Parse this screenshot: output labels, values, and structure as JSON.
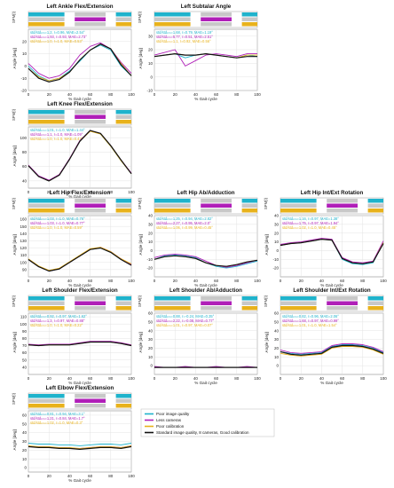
{
  "colors": {
    "cyan": "#1fb3cc",
    "magenta": "#b01fb8",
    "orange": "#e8b21c",
    "black": "#111111",
    "spm_gray": "#c8c8c8",
    "grid": "#dcdcdc"
  },
  "common": {
    "y_label_spm": "SPM{t}",
    "y_label_angle": "Angle [deg]",
    "x_label": "% Gait cycle",
    "x_ticks": [
      0,
      20,
      40,
      60,
      80,
      100
    ]
  },
  "legend": [
    {
      "label": "Poor image quality",
      "color": "#1fb3cc"
    },
    {
      "label": "Less cameras",
      "color": "#b01fb8"
    },
    {
      "label": "Poor calibration",
      "color": "#e8b21c"
    },
    {
      "label": "Standard image quality, 8 cameras, Good calibration",
      "color": "#111111"
    }
  ],
  "chart_data": [
    {
      "id": "ankle",
      "type": "line",
      "title": "Left Ankle Flex/Extension",
      "ylim": [
        -20,
        30
      ],
      "yticks": [
        -20,
        -10,
        0,
        10,
        20
      ],
      "stats": [
        "std/stdₛₜₙ=1.2, r=0.96, MAE=2.54°",
        "std/stdₛₜₙ=1.93, r=0.93, MAE=2.73°",
        "std/stdₛₜₙ=1.0, r=1.0, MAE=0.53°"
      ],
      "x": [
        0,
        10,
        20,
        30,
        40,
        50,
        60,
        70,
        80,
        90,
        100
      ],
      "series": [
        {
          "name": "Poor image quality",
          "values": [
            0,
            -8,
            -12,
            -10,
            -4,
            4,
            13,
            17,
            13,
            0,
            -8
          ]
        },
        {
          "name": "Less cameras",
          "values": [
            2,
            -6,
            -10,
            -8,
            -2,
            9,
            16,
            19,
            14,
            3,
            -6
          ]
        },
        {
          "name": "Poor calibration",
          "values": [
            -2,
            -9,
            -12,
            -10,
            -5,
            5,
            13,
            18,
            14,
            2,
            -8
          ]
        },
        {
          "name": "Standard image quality, 8 cameras, Good calibration",
          "values": [
            -2,
            -10,
            -13,
            -11,
            -5,
            5,
            13,
            18,
            14,
            1,
            -8
          ]
        }
      ]
    },
    {
      "id": "subtalar",
      "type": "line",
      "title": "Left Subtalar Angle",
      "ylim": [
        -10,
        35
      ],
      "yticks": [
        -10,
        0,
        10,
        20,
        30
      ],
      "stats": [
        "std/stdₛₜₙ=1.68, r=0.79, MAE=1.19°",
        "std/stdₛₜₙ=5.77, r=0.51, MAE=2.51°",
        "std/stdₛₜₙ=1.1, r=0.92, MAE=0.56°"
      ],
      "x": [
        0,
        10,
        20,
        30,
        40,
        50,
        60,
        70,
        80,
        90,
        100
      ],
      "series": [
        {
          "name": "Poor image quality",
          "values": [
            15,
            16,
            17,
            14,
            16,
            17,
            16,
            15,
            14,
            16,
            15
          ]
        },
        {
          "name": "Less cameras",
          "values": [
            16,
            18,
            20,
            8,
            12,
            16,
            17,
            16,
            15,
            17,
            17
          ]
        },
        {
          "name": "Poor calibration",
          "values": [
            15,
            16,
            17,
            16,
            16,
            17,
            16,
            15,
            14,
            16,
            16
          ]
        },
        {
          "name": "Standard image quality, 8 cameras, Good calibration",
          "values": [
            15,
            16,
            17,
            16,
            16,
            17,
            16,
            15,
            14,
            15,
            15
          ]
        }
      ]
    },
    {
      "id": "knee",
      "type": "line",
      "title": "Left Knee Flex/Extension",
      "ylim": [
        30,
        115
      ],
      "yticks": [
        40,
        60,
        80,
        100
      ],
      "stats": [
        "std/stdₛₜₙ=1.01, r=1.0, MAE=1.44°",
        "std/stdₛₜₙ=1.1, r=1.0, MAE=1.09°",
        "std/stdₛₜₙ=1.0, r=1.0, MAE=0.43°"
      ],
      "x": [
        0,
        10,
        20,
        30,
        40,
        50,
        60,
        70,
        80,
        90,
        100
      ],
      "series": [
        {
          "name": "Poor image quality",
          "values": [
            61,
            46,
            40,
            48,
            70,
            95,
            110,
            105,
            88,
            68,
            50
          ]
        },
        {
          "name": "Less cameras",
          "values": [
            62,
            47,
            41,
            49,
            71,
            96,
            110,
            106,
            89,
            69,
            51
          ]
        },
        {
          "name": "Poor calibration",
          "values": [
            61,
            46,
            40,
            48,
            70,
            95,
            109,
            105,
            88,
            68,
            50
          ]
        },
        {
          "name": "Standard image quality, 8 cameras, Good calibration",
          "values": [
            61,
            46,
            40,
            48,
            70,
            95,
            110,
            106,
            89,
            69,
            50
          ]
        }
      ]
    },
    {
      "id": "hipflex",
      "type": "line",
      "title": "Left Hip Flex/Extension",
      "ylim": [
        80,
        165
      ],
      "yticks": [
        90,
        100,
        110,
        120,
        130,
        140,
        150,
        160
      ],
      "stats": [
        "std/stdₛₜₙ=1.03, r=1.0, MAE=0.76°",
        "std/stdₛₜₙ=1.03, r=1.0, MAE=0.77°",
        "std/stdₛₜₙ=1.0, r=1.0, MAE=0.59°"
      ],
      "x": [
        0,
        10,
        20,
        30,
        40,
        50,
        60,
        70,
        80,
        90,
        100
      ],
      "series": [
        {
          "name": "Poor image quality",
          "values": [
            104,
            94,
            88,
            91,
            100,
            109,
            118,
            120,
            114,
            104,
            97
          ]
        },
        {
          "name": "Less cameras",
          "values": [
            104,
            94,
            88,
            91,
            100,
            109,
            118,
            121,
            115,
            105,
            97
          ]
        },
        {
          "name": "Poor calibration",
          "values": [
            105,
            95,
            89,
            92,
            101,
            110,
            119,
            121,
            115,
            105,
            98
          ]
        },
        {
          "name": "Standard image quality, 8 cameras, Good calibration",
          "values": [
            104,
            94,
            88,
            91,
            100,
            109,
            118,
            120,
            114,
            104,
            96
          ]
        }
      ]
    },
    {
      "id": "hipabd",
      "type": "line",
      "title": "Left Hip Ab/Adduction",
      "ylim": [
        -30,
        40
      ],
      "yticks": [
        -20,
        -10,
        0,
        10,
        20,
        30,
        40
      ],
      "stats": [
        "std/stdₛₜₙ=1.25, r=0.94, MAE=2.82°",
        "std/stdₛₜₙ=2.27, r=0.95, MAE=2.0°",
        "std/stdₛₜₙ=1.06, r=0.99, MAE=0.45°"
      ],
      "x": [
        0,
        10,
        20,
        30,
        40,
        50,
        60,
        70,
        80,
        90,
        100
      ],
      "series": [
        {
          "name": "Poor image quality",
          "values": [
            -10,
            -6,
            -5,
            -6,
            -8,
            -14,
            -18,
            -20,
            -18,
            -15,
            -12
          ]
        },
        {
          "name": "Less cameras",
          "values": [
            -8,
            -5,
            -4,
            -5,
            -7,
            -12,
            -17,
            -19,
            -17,
            -14,
            -11
          ]
        },
        {
          "name": "Poor calibration",
          "values": [
            -10,
            -7,
            -6,
            -7,
            -9,
            -14,
            -17,
            -18,
            -16,
            -13,
            -11
          ]
        },
        {
          "name": "Standard image quality, 8 cameras, Good calibration",
          "values": [
            -10,
            -7,
            -6,
            -7,
            -9,
            -14,
            -17,
            -18,
            -16,
            -13,
            -11
          ]
        }
      ]
    },
    {
      "id": "hiprot",
      "type": "line",
      "title": "Left Hip Int/Ext Rotation",
      "ylim": [
        -30,
        40
      ],
      "yticks": [
        -20,
        -10,
        0,
        10,
        20,
        30,
        40
      ],
      "stats": [
        "std/stdₛₜₙ=1.16, r=0.97, MAE=1.38°",
        "std/stdₛₜₙ=1.75, r=0.97, MAE=1.94°",
        "std/stdₛₜₙ=1.02, r=1.0, MAE=0.45°"
      ],
      "x": [
        0,
        10,
        20,
        30,
        40,
        50,
        60,
        70,
        80,
        90,
        100
      ],
      "series": [
        {
          "name": "Poor image quality",
          "values": [
            6,
            8,
            9,
            11,
            13,
            12,
            -10,
            -15,
            -16,
            -14,
            9
          ]
        },
        {
          "name": "Less cameras",
          "values": [
            7,
            9,
            10,
            12,
            14,
            13,
            -8,
            -13,
            -14,
            -12,
            11
          ]
        },
        {
          "name": "Poor calibration",
          "values": [
            6,
            8,
            9,
            11,
            13,
            12,
            -9,
            -14,
            -15,
            -13,
            9
          ]
        },
        {
          "name": "Standard image quality, 8 cameras, Good calibration",
          "values": [
            6,
            8,
            9,
            11,
            13,
            12,
            -9,
            -14,
            -15,
            -13,
            8
          ]
        }
      ]
    },
    {
      "id": "shflex",
      "type": "line",
      "title": "Left Shoulder Flex/Extension",
      "ylim": [
        30,
        115
      ],
      "yticks": [
        40,
        50,
        60,
        70,
        80,
        90,
        100,
        110
      ],
      "stats": [
        "std/stdₛₜₙ=0.92, r=0.97, MAE=1.62°",
        "std/stdₛₜₙ=1.3, r=0.97, MAE=0.88°",
        "std/stdₛₜₙ=1.0, r=1.0, MAE=0.22°"
      ],
      "x": [
        0,
        10,
        20,
        30,
        40,
        50,
        60,
        70,
        80,
        90,
        100
      ],
      "series": [
        {
          "name": "Poor image quality",
          "values": [
            71,
            70,
            71,
            71,
            71,
            73,
            75,
            75,
            75,
            73,
            70
          ]
        },
        {
          "name": "Less cameras",
          "values": [
            72,
            71,
            72,
            72,
            72,
            74,
            76,
            76,
            76,
            74,
            71
          ]
        },
        {
          "name": "Poor calibration",
          "values": [
            71,
            70,
            71,
            71,
            71,
            73,
            75,
            75,
            75,
            73,
            70
          ]
        },
        {
          "name": "Standard image quality, 8 cameras, Good calibration",
          "values": [
            71,
            70,
            71,
            71,
            71,
            73,
            75,
            75,
            75,
            73,
            70
          ]
        }
      ]
    },
    {
      "id": "shabd",
      "type": "line",
      "title": "Left Shoulder Ab/Adduction",
      "ylim": [
        -10,
        60
      ],
      "yticks": [
        0,
        10,
        20,
        30,
        40,
        50,
        60
      ],
      "stats": [
        "std/stdₛₜₙ=0.88, r=-0.24, MAE=0.35°",
        "std/stdₛₜₙ=2.22, r=-0.08, MAE=0.77°",
        "std/stdₛₜₙ=1.01, r=0.97, MAE=0.07°"
      ],
      "x": [
        0,
        10,
        20,
        30,
        40,
        50,
        60,
        70,
        80,
        90,
        100
      ],
      "series": [
        {
          "name": "Poor image quality",
          "values": [
            -2,
            -2,
            -2,
            -2,
            -2,
            -2,
            -2,
            -2,
            -2,
            -2,
            -2
          ]
        },
        {
          "name": "Less cameras",
          "values": [
            -1,
            -2,
            -2,
            -1,
            -2,
            -2,
            -1,
            -2,
            -2,
            -1,
            -2
          ]
        },
        {
          "name": "Poor calibration",
          "values": [
            -2,
            -2,
            -2,
            -2,
            -2,
            -2,
            -2,
            -2,
            -2,
            -2,
            -2
          ]
        },
        {
          "name": "Standard image quality, 8 cameras, Good calibration",
          "values": [
            -2,
            -2,
            -2,
            -2,
            -2,
            -2,
            -2,
            -2,
            -2,
            -2,
            -2
          ]
        }
      ]
    },
    {
      "id": "shrot",
      "type": "line",
      "title": "Left Shoulder Int/Ext Rotation",
      "ylim": [
        -10,
        60
      ],
      "yticks": [
        0,
        10,
        20,
        30,
        40,
        50,
        60
      ],
      "stats": [
        "std/stdₛₜₙ=0.82, r=0.96, MAE=2.06°",
        "std/stdₛₜₙ=1.68, r=0.97, MAE=0.99°",
        "std/stdₛₜₙ=1.01, r=1.0, MAE=1.54°"
      ],
      "x": [
        0,
        10,
        20,
        30,
        40,
        50,
        60,
        70,
        80,
        90,
        100
      ],
      "series": [
        {
          "name": "Poor image quality",
          "values": [
            16,
            14,
            13,
            14,
            15,
            22,
            24,
            24,
            23,
            20,
            15
          ]
        },
        {
          "name": "Less cameras",
          "values": [
            18,
            15,
            14,
            15,
            16,
            23,
            25,
            25,
            24,
            21,
            16
          ]
        },
        {
          "name": "Poor calibration",
          "values": [
            14,
            12,
            11,
            12,
            13,
            20,
            22,
            22,
            21,
            18,
            13
          ]
        },
        {
          "name": "Standard image quality, 8 cameras, Good calibration",
          "values": [
            16,
            13,
            12,
            13,
            14,
            21,
            23,
            23,
            22,
            19,
            14
          ]
        }
      ]
    },
    {
      "id": "elbow",
      "type": "line",
      "title": "Left Elbow Flex/Extension",
      "ylim": [
        -5,
        65
      ],
      "yticks": [
        0,
        10,
        20,
        30,
        40,
        50,
        60
      ],
      "stats": [
        "std/stdₛₜₙ=0.81, r=0.94, MAE=3.1°",
        "std/stdₛₜₙ=1.21, r=0.84, MAE=1.7°",
        "std/stdₛₜₙ=1.02, r=1.0, MAE=0.3°"
      ],
      "x": [
        0,
        10,
        20,
        30,
        40,
        50,
        60,
        70,
        80,
        90,
        100
      ],
      "series": [
        {
          "name": "Poor image quality",
          "values": [
            28,
            27,
            27,
            26,
            26,
            25,
            26,
            27,
            27,
            26,
            28
          ]
        },
        {
          "name": "Less cameras",
          "values": [
            24,
            24,
            23,
            23,
            22,
            22,
            23,
            24,
            24,
            23,
            25
          ]
        },
        {
          "name": "Poor calibration",
          "values": [
            25,
            24,
            24,
            23,
            23,
            22,
            23,
            24,
            24,
            23,
            25
          ]
        },
        {
          "name": "Standard image quality, 8 cameras, Good calibration",
          "values": [
            24,
            23,
            23,
            22,
            22,
            21,
            22,
            23,
            23,
            22,
            24
          ]
        }
      ]
    }
  ]
}
